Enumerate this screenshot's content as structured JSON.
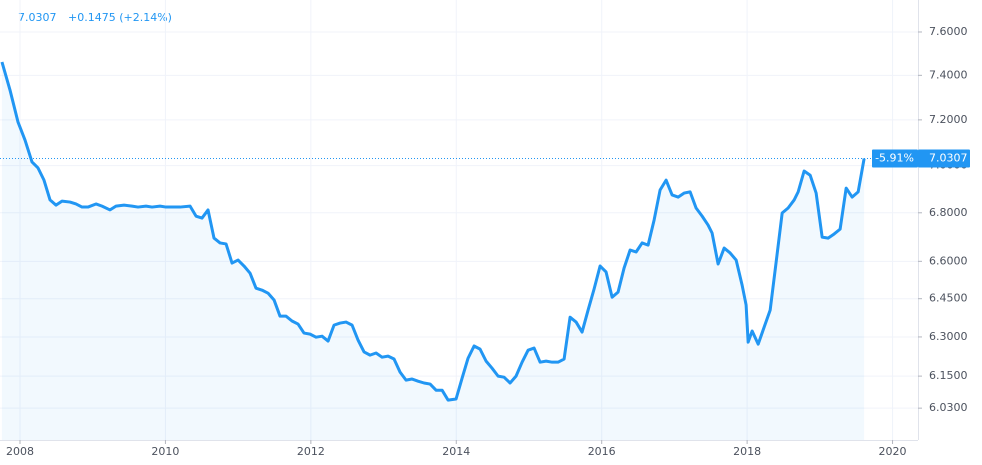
{
  "chart_data": {
    "type": "line",
    "header": {
      "price": "7.0307",
      "change": "+0.1475 (+2.14%)"
    },
    "log_scale": true,
    "grid": true,
    "xlim": [
      2007.725,
      2020.35
    ],
    "xticks": [
      2008,
      2010,
      2012,
      2014,
      2016,
      2018,
      2020
    ],
    "ylim": [
      5.913,
      7.751
    ],
    "yticks": [
      {
        "value": 6.03,
        "label": "6.0300"
      },
      {
        "value": 6.15,
        "label": "6.1500"
      },
      {
        "value": 6.3,
        "label": "6.3000"
      },
      {
        "value": 6.45,
        "label": "6.4500"
      },
      {
        "value": 6.6,
        "label": "6.6000"
      },
      {
        "value": 6.8,
        "label": "6.8000"
      },
      {
        "value": 7.0,
        "label": "7.0000"
      },
      {
        "value": 7.2,
        "label": "7.2000"
      },
      {
        "value": 7.4,
        "label": "7.4000"
      },
      {
        "value": 7.6,
        "label": "7.6000"
      }
    ],
    "price_label": {
      "change": "-5.91%",
      "value": 7.0307
    },
    "series": [
      {
        "color": "#2196f3",
        "x": [
          2007.752,
          2007.862,
          2007.972,
          2008.069,
          2008.165,
          2008.248,
          2008.33,
          2008.413,
          2008.495,
          2008.578,
          2008.688,
          2008.77,
          2008.853,
          2008.935,
          2009.045,
          2009.128,
          2009.238,
          2009.32,
          2009.431,
          2009.541,
          2009.623,
          2009.733,
          2009.816,
          2009.926,
          2010.008,
          2010.091,
          2010.201,
          2010.339,
          2010.421,
          2010.503,
          2010.586,
          2010.668,
          2010.751,
          2010.834,
          2010.916,
          2010.999,
          2011.081,
          2011.164,
          2011.246,
          2011.329,
          2011.411,
          2011.494,
          2011.576,
          2011.659,
          2011.741,
          2011.824,
          2011.906,
          2011.989,
          2012.071,
          2012.154,
          2012.237,
          2012.319,
          2012.402,
          2012.484,
          2012.567,
          2012.649,
          2012.732,
          2012.814,
          2012.897,
          2012.979,
          2013.062,
          2013.144,
          2013.227,
          2013.309,
          2013.392,
          2013.474,
          2013.557,
          2013.64,
          2013.722,
          2013.805,
          2013.887,
          2013.997,
          2014.08,
          2014.162,
          2014.245,
          2014.327,
          2014.41,
          2014.492,
          2014.575,
          2014.657,
          2014.74,
          2014.822,
          2014.905,
          2014.988,
          2015.07,
          2015.153,
          2015.235,
          2015.318,
          2015.4,
          2015.483,
          2015.565,
          2015.648,
          2015.73,
          2015.813,
          2015.895,
          2015.978,
          2016.06,
          2016.143,
          2016.225,
          2016.308,
          2016.391,
          2016.473,
          2016.556,
          2016.638,
          2016.721,
          2016.803,
          2016.886,
          2016.968,
          2017.051,
          2017.133,
          2017.216,
          2017.298,
          2017.381,
          2017.463,
          2017.518,
          2017.601,
          2017.684,
          2017.766,
          2017.849,
          2017.931,
          2017.986,
          2018.014,
          2018.069,
          2018.152,
          2018.234,
          2018.317,
          2018.399,
          2018.482,
          2018.564,
          2018.647,
          2018.702,
          2018.784,
          2018.867,
          2018.949,
          2019.032,
          2019.114,
          2019.197,
          2019.279,
          2019.362,
          2019.444,
          2019.527,
          2019.609
        ],
        "values": [
          7.461,
          7.334,
          7.191,
          7.111,
          7.016,
          6.99,
          6.938,
          6.854,
          6.832,
          6.849,
          6.845,
          6.837,
          6.824,
          6.824,
          6.837,
          6.828,
          6.812,
          6.828,
          6.832,
          6.828,
          6.824,
          6.828,
          6.824,
          6.828,
          6.824,
          6.824,
          6.824,
          6.828,
          6.786,
          6.778,
          6.812,
          6.695,
          6.675,
          6.671,
          6.593,
          6.605,
          6.581,
          6.552,
          6.492,
          6.484,
          6.472,
          6.445,
          6.381,
          6.381,
          6.362,
          6.35,
          6.315,
          6.311,
          6.299,
          6.303,
          6.284,
          6.346,
          6.354,
          6.358,
          6.346,
          6.288,
          6.242,
          6.23,
          6.238,
          6.222,
          6.226,
          6.215,
          6.165,
          6.135,
          6.139,
          6.131,
          6.124,
          6.12,
          6.097,
          6.097,
          6.06,
          6.064,
          6.142,
          6.218,
          6.265,
          6.253,
          6.207,
          6.18,
          6.15,
          6.146,
          6.124,
          6.15,
          6.203,
          6.249,
          6.257,
          6.203,
          6.207,
          6.203,
          6.203,
          6.215,
          6.377,
          6.358,
          6.319,
          6.405,
          6.488,
          6.581,
          6.557,
          6.456,
          6.476,
          6.573,
          6.646,
          6.638,
          6.675,
          6.666,
          6.77,
          6.896,
          6.938,
          6.875,
          6.866,
          6.883,
          6.888,
          6.82,
          6.786,
          6.749,
          6.716,
          6.589,
          6.654,
          6.634,
          6.605,
          6.504,
          6.425,
          6.28,
          6.323,
          6.272,
          6.338,
          6.405,
          6.597,
          6.799,
          6.82,
          6.854,
          6.888,
          6.977,
          6.959,
          6.883,
          6.699,
          6.695,
          6.712,
          6.732,
          6.904,
          6.866,
          6.888,
          7.0307
        ]
      }
    ]
  }
}
